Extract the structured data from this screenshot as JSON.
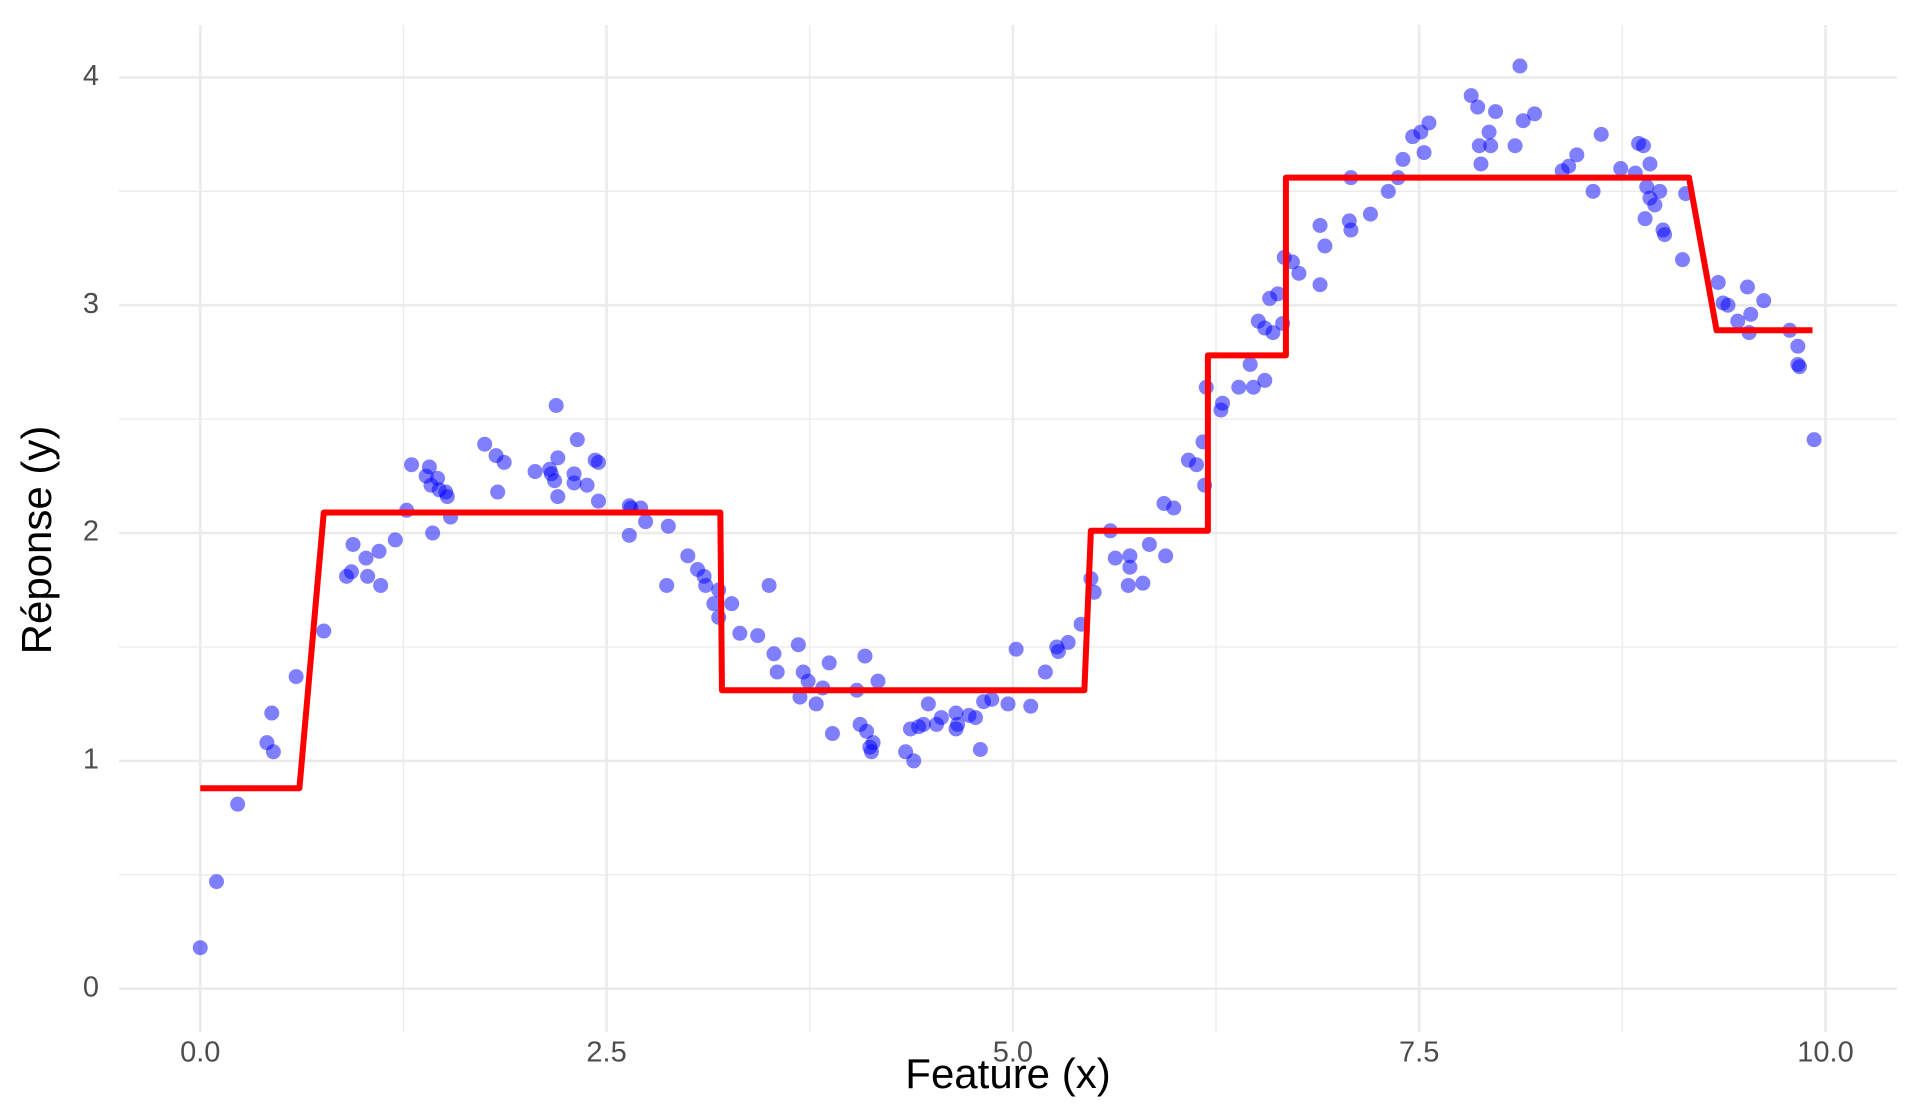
{
  "chart_data": {
    "type": "scatter",
    "x_label": "Feature (x)",
    "y_label": "Réponse (y)",
    "xlim": [
      -0.5,
      10.44
    ],
    "ylim": [
      -0.19,
      4.23
    ],
    "xticks": [
      {
        "value": 0,
        "label": "0.0"
      },
      {
        "value": 2.5,
        "label": "2.5"
      },
      {
        "value": 5,
        "label": "5.0"
      },
      {
        "value": 7.5,
        "label": "7.5"
      },
      {
        "value": 10,
        "label": "10.0"
      }
    ],
    "yticks": [
      0,
      1,
      2,
      3,
      4
    ],
    "grid": true,
    "series": [
      {
        "type": "scatter",
        "color": "#0000ff",
        "x": [
          0.0,
          0.1,
          0.23,
          0.41,
          0.44,
          0.45,
          0.59,
          0.76,
          0.9,
          0.93,
          0.94,
          1.02,
          1.03,
          1.1,
          1.11,
          1.2,
          1.27,
          1.3,
          1.39,
          1.41,
          1.42,
          1.43,
          1.46,
          1.47,
          1.51,
          1.52,
          1.54,
          1.75,
          1.82,
          1.83,
          1.87,
          2.06,
          2.15,
          2.16,
          2.18,
          2.19,
          2.2,
          2.2,
          2.3,
          2.32,
          2.3,
          2.38,
          2.43,
          2.45,
          2.45,
          2.64,
          2.64,
          2.65,
          2.71,
          2.74,
          2.87,
          2.88,
          3.0,
          3.06,
          3.1,
          3.11,
          3.16,
          3.19,
          3.19,
          3.27,
          3.32,
          3.43,
          3.5,
          3.53,
          3.55,
          3.68,
          3.69,
          3.71,
          3.74,
          3.79,
          3.83,
          3.87,
          3.89,
          4.04,
          4.06,
          4.09,
          4.1,
          4.12,
          4.13,
          4.14,
          4.17,
          4.34,
          4.37,
          4.39,
          4.42,
          4.45,
          4.48,
          4.53,
          4.56,
          4.65,
          4.65,
          4.66,
          4.73,
          4.77,
          4.8,
          4.82,
          4.87,
          4.97,
          5.02,
          5.11,
          5.2,
          5.27,
          5.28,
          5.34,
          5.42,
          5.48,
          5.5,
          5.6,
          5.63,
          5.71,
          5.72,
          5.72,
          5.8,
          5.84,
          5.93,
          5.94,
          5.99,
          6.08,
          6.13,
          6.17,
          6.18,
          6.19,
          6.28,
          6.29,
          6.39,
          6.46,
          6.48,
          6.51,
          6.55,
          6.55,
          6.58,
          6.6,
          6.63,
          6.66,
          6.67,
          6.72,
          6.76,
          6.89,
          6.89,
          6.92,
          7.07,
          7.08,
          7.08,
          7.2,
          7.31,
          7.37,
          7.4,
          7.46,
          7.51,
          7.53,
          7.56,
          7.82,
          7.86,
          7.87,
          7.88,
          7.93,
          7.94,
          7.97,
          8.09,
          8.12,
          8.14,
          8.21,
          8.38,
          8.42,
          8.47,
          8.57,
          8.62,
          8.74,
          8.83,
          8.85,
          8.88,
          8.89,
          8.9,
          8.92,
          8.92,
          8.95,
          8.98,
          9.0,
          9.01,
          9.12,
          9.14,
          9.34,
          9.37,
          9.4,
          9.46,
          9.52,
          9.53,
          9.54,
          9.62,
          9.78,
          9.83,
          9.83,
          9.84,
          9.93
        ],
        "values": [
          0.18,
          0.47,
          0.81,
          1.08,
          1.21,
          1.04,
          1.37,
          1.57,
          1.81,
          1.83,
          1.95,
          1.89,
          1.81,
          1.92,
          1.77,
          1.97,
          2.1,
          2.3,
          2.25,
          2.29,
          2.21,
          2.0,
          2.24,
          2.19,
          2.18,
          2.16,
          2.07,
          2.39,
          2.34,
          2.18,
          2.31,
          2.27,
          2.28,
          2.26,
          2.23,
          2.56,
          2.16,
          2.33,
          2.26,
          2.41,
          2.22,
          2.21,
          2.32,
          2.31,
          2.14,
          1.99,
          2.12,
          2.11,
          2.11,
          2.05,
          1.77,
          2.03,
          1.9,
          1.84,
          1.81,
          1.77,
          1.69,
          1.75,
          1.63,
          1.69,
          1.56,
          1.55,
          1.77,
          1.47,
          1.39,
          1.51,
          1.28,
          1.39,
          1.35,
          1.25,
          1.32,
          1.43,
          1.12,
          1.31,
          1.16,
          1.46,
          1.13,
          1.06,
          1.04,
          1.08,
          1.35,
          1.04,
          1.14,
          1.0,
          1.15,
          1.16,
          1.25,
          1.16,
          1.19,
          1.21,
          1.14,
          1.16,
          1.2,
          1.19,
          1.05,
          1.26,
          1.27,
          1.25,
          1.49,
          1.24,
          1.39,
          1.5,
          1.48,
          1.52,
          1.6,
          1.8,
          1.74,
          2.01,
          1.89,
          1.77,
          1.9,
          1.85,
          1.78,
          1.95,
          2.13,
          1.9,
          2.11,
          2.32,
          2.3,
          2.4,
          2.21,
          2.64,
          2.54,
          2.57,
          2.64,
          2.74,
          2.64,
          2.93,
          2.67,
          2.9,
          3.03,
          2.88,
          3.05,
          2.92,
          3.21,
          3.19,
          3.14,
          3.09,
          3.35,
          3.26,
          3.37,
          3.33,
          3.56,
          3.4,
          3.5,
          3.56,
          3.64,
          3.74,
          3.76,
          3.67,
          3.8,
          3.92,
          3.87,
          3.7,
          3.62,
          3.76,
          3.7,
          3.85,
          3.7,
          4.05,
          3.81,
          3.84,
          3.59,
          3.61,
          3.66,
          3.5,
          3.75,
          3.6,
          3.58,
          3.71,
          3.7,
          3.38,
          3.52,
          3.62,
          3.47,
          3.44,
          3.5,
          3.33,
          3.31,
          3.2,
          3.49,
          3.1,
          3.01,
          3.0,
          2.93,
          3.08,
          2.88,
          2.96,
          3.02,
          2.89,
          2.82,
          2.74,
          2.73,
          2.41
        ]
      },
      {
        "type": "line",
        "color": "#ff0000",
        "x": [
          0,
          0.61,
          0.76,
          3.2,
          3.21,
          5.44,
          5.48,
          6.2,
          6.2,
          6.68,
          6.68,
          9.16,
          9.33,
          9.92
        ],
        "values": [
          0.88,
          0.88,
          2.09,
          2.09,
          1.31,
          1.31,
          2.01,
          2.01,
          2.78,
          2.78,
          3.56,
          3.56,
          2.89,
          2.89
        ]
      }
    ]
  }
}
